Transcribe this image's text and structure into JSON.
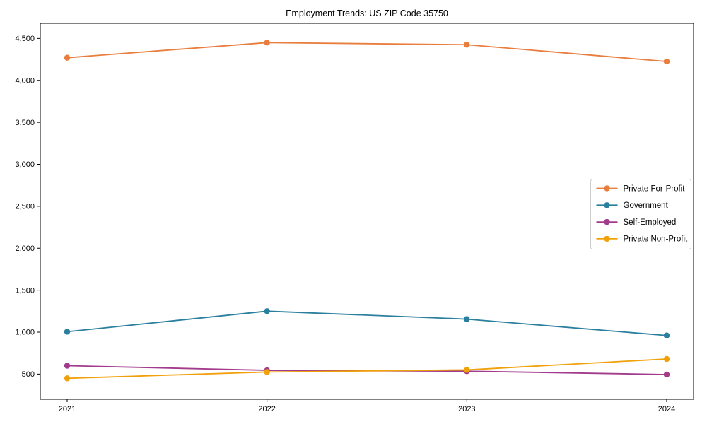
{
  "chart_data": {
    "type": "line",
    "title": "Employment Trends: US ZIP Code 35750",
    "x": [
      "2021",
      "2022",
      "2023",
      "2024"
    ],
    "series": [
      {
        "name": "Private For-Profit",
        "color": "#E87D3E",
        "values": [
          4270,
          4450,
          4425,
          4225
        ]
      },
      {
        "name": "Government",
        "color": "#2A7F9E",
        "values": [
          1005,
          1250,
          1155,
          960
        ]
      },
      {
        "name": "Self-Employed",
        "color": "#A23B8C",
        "values": [
          600,
          545,
          535,
          495
        ]
      },
      {
        "name": "Private Non-Profit",
        "color": "#F0A008",
        "values": [
          450,
          525,
          550,
          680
        ]
      }
    ],
    "xlabel": "",
    "ylabel": "",
    "ylim": [
      200,
      4680
    ],
    "yticks": [
      500,
      1000,
      1500,
      2000,
      2500,
      3000,
      3500,
      4000,
      4500
    ],
    "ytick_labels": [
      "500",
      "1,000",
      "1,500",
      "2,000",
      "2,500",
      "3,000",
      "3,500",
      "4,000",
      "4,500"
    ],
    "grid": false,
    "legend_position": "center-right",
    "marker": "circle"
  },
  "colors": {
    "background": "#ffffff",
    "axis": "#000000",
    "tick_label": "#000000",
    "legend_border": "#cccccc",
    "legend_background": "#ffffff"
  }
}
